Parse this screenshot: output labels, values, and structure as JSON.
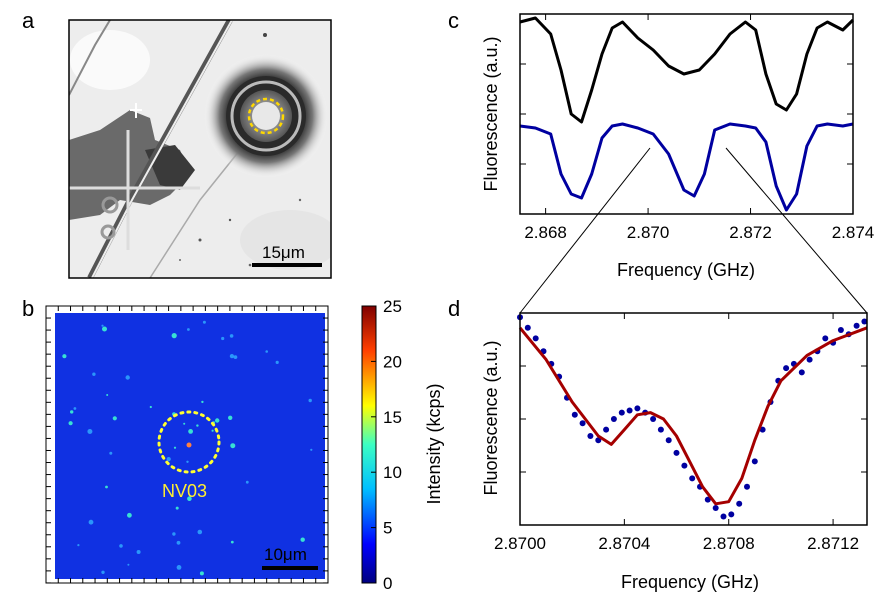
{
  "panels": {
    "a": {
      "label": "a",
      "scalebar": "15μm"
    },
    "b": {
      "label": "b",
      "scalebar": "10μm",
      "annotation": "NV03",
      "colorbar": {
        "label": "Intensity (kcps)",
        "ticks": [
          "25",
          "20",
          "15",
          "10",
          "5",
          "0"
        ],
        "range": [
          0,
          25
        ],
        "colormap": [
          "#00007f",
          "#0000ff",
          "#00bfff",
          "#3cffc3",
          "#ffff00",
          "#ff3f00",
          "#7f0000"
        ]
      }
    },
    "c": {
      "label": "c"
    },
    "d": {
      "label": "d"
    }
  },
  "chart_data": [
    {
      "panel": "c",
      "type": "line",
      "xlabel": "Frequency (GHz)",
      "ylabel": "Fluorescence (a.u.)",
      "xlim": [
        2.8675,
        2.874
      ],
      "ylim": [
        0,
        1
      ],
      "xticks": [
        "2.868",
        "2.870",
        "2.872",
        "2.874"
      ],
      "xtick_values": [
        2.868,
        2.87,
        2.872,
        2.874
      ],
      "series": [
        {
          "color": "#000000",
          "x": [
            2.8675,
            2.8678,
            2.8681,
            2.8683,
            2.8685,
            2.8687,
            2.8689,
            2.8691,
            2.8693,
            2.8695,
            2.8698,
            2.8701,
            2.8704,
            2.8707,
            2.871,
            2.8713,
            2.8716,
            2.8719,
            2.8721,
            2.8723,
            2.8725,
            2.8727,
            2.8729,
            2.8731,
            2.8733,
            2.8735,
            2.8738,
            2.874
          ],
          "y": [
            0.96,
            0.98,
            0.9,
            0.72,
            0.5,
            0.46,
            0.62,
            0.8,
            0.93,
            0.96,
            0.88,
            0.82,
            0.74,
            0.7,
            0.72,
            0.8,
            0.9,
            0.96,
            0.92,
            0.7,
            0.55,
            0.52,
            0.6,
            0.8,
            0.93,
            0.96,
            0.92,
            0.97
          ]
        },
        {
          "color": "#0000a0",
          "x": [
            2.8675,
            2.8678,
            2.8681,
            2.8683,
            2.8685,
            2.8687,
            2.8689,
            2.8691,
            2.8693,
            2.8695,
            2.8698,
            2.8701,
            2.8704,
            2.8707,
            2.8709,
            2.8711,
            2.8713,
            2.8716,
            2.8719,
            2.8721,
            2.8723,
            2.8725,
            2.8727,
            2.8729,
            2.8731,
            2.8733,
            2.8735,
            2.8738,
            2.874
          ],
          "y": [
            0.44,
            0.43,
            0.4,
            0.2,
            0.1,
            0.08,
            0.2,
            0.38,
            0.44,
            0.45,
            0.43,
            0.4,
            0.3,
            0.12,
            0.09,
            0.2,
            0.42,
            0.45,
            0.44,
            0.43,
            0.36,
            0.14,
            0.02,
            0.1,
            0.34,
            0.44,
            0.45,
            0.44,
            0.45
          ]
        }
      ]
    },
    {
      "panel": "d",
      "type": "scatter",
      "xlabel": "Frequency (GHz)",
      "ylabel": "Fluorescence (a.u.)",
      "xlim": [
        2.87,
        2.87133
      ],
      "ylim": [
        0,
        1
      ],
      "xticks": [
        "2.8700",
        "2.8704",
        "2.8708",
        "2.8712"
      ],
      "xtick_values": [
        2.87,
        2.8704,
        2.8708,
        2.8712
      ],
      "series": [
        {
          "type": "scatter",
          "color": "#0000a0",
          "x": [
            2.87,
            2.87003,
            2.87006,
            2.87009,
            2.87012,
            2.87015,
            2.87018,
            2.87021,
            2.87024,
            2.87027,
            2.8703,
            2.87033,
            2.87036,
            2.87039,
            2.87042,
            2.87045,
            2.87048,
            2.87051,
            2.87054,
            2.87057,
            2.8706,
            2.87063,
            2.87066,
            2.87069,
            2.87072,
            2.87075,
            2.87078,
            2.87081,
            2.87084,
            2.87087,
            2.8709,
            2.87093,
            2.87096,
            2.87099,
            2.87102,
            2.87105,
            2.87108,
            2.87111,
            2.87114,
            2.87117,
            2.8712,
            2.87123,
            2.87126,
            2.87129,
            2.87132
          ],
          "y": [
            0.98,
            0.93,
            0.88,
            0.82,
            0.76,
            0.7,
            0.6,
            0.52,
            0.48,
            0.42,
            0.4,
            0.45,
            0.5,
            0.53,
            0.54,
            0.55,
            0.53,
            0.5,
            0.45,
            0.4,
            0.34,
            0.28,
            0.22,
            0.18,
            0.12,
            0.08,
            0.04,
            0.05,
            0.1,
            0.18,
            0.3,
            0.45,
            0.58,
            0.68,
            0.74,
            0.76,
            0.72,
            0.78,
            0.82,
            0.88,
            0.86,
            0.92,
            0.9,
            0.94,
            0.96
          ]
        },
        {
          "type": "line",
          "color": "#a50000",
          "x": [
            2.87,
            2.8701,
            2.8702,
            2.8703,
            2.87035,
            2.8704,
            2.87045,
            2.8705,
            2.87055,
            2.8706,
            2.87065,
            2.8707,
            2.87075,
            2.8708,
            2.87085,
            2.8709,
            2.87095,
            2.871,
            2.8711,
            2.8712,
            2.87133
          ],
          "y": [
            0.93,
            0.78,
            0.58,
            0.42,
            0.38,
            0.45,
            0.52,
            0.53,
            0.5,
            0.42,
            0.3,
            0.18,
            0.1,
            0.11,
            0.22,
            0.4,
            0.56,
            0.68,
            0.8,
            0.87,
            0.93
          ]
        }
      ]
    }
  ]
}
